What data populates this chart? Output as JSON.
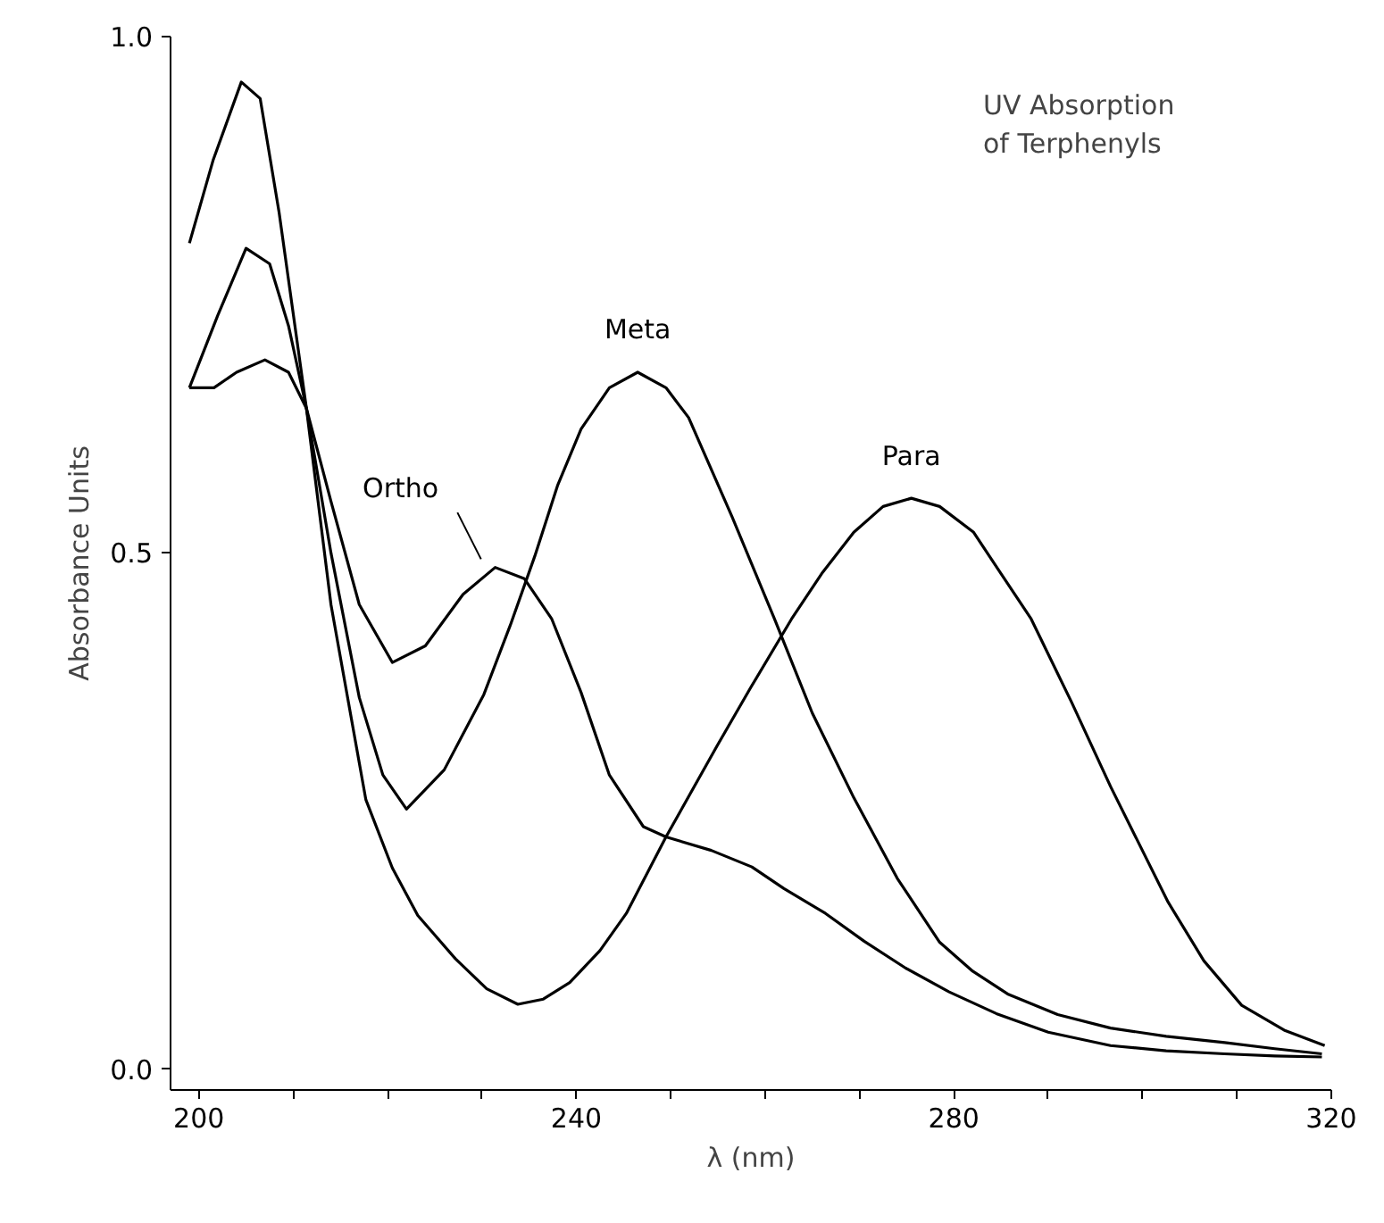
{
  "chart_data": {
    "type": "line",
    "xlabel": "λ (nm)",
    "ylabel": "Absorbance Units",
    "annotations": [
      "UV Absorption\nof Terphenyls"
    ],
    "xlim": [
      197,
      320
    ],
    "ylim": [
      -0.02,
      1.0
    ],
    "xticks": [
      200,
      {
        "value": 210,
        "label": null
      },
      {
        "value": 220,
        "label": null
      },
      {
        "value": 230,
        "label": null
      },
      240,
      {
        "value": 250,
        "label": null
      },
      {
        "value": 260,
        "label": null
      },
      {
        "value": 270,
        "label": null
      },
      280,
      {
        "value": 290,
        "label": null
      },
      {
        "value": 300,
        "label": null
      },
      {
        "value": 310,
        "label": null
      },
      320
    ],
    "yticks": [
      {
        "value": 0,
        "label": "0.0"
      },
      0.5,
      {
        "value": 1,
        "label": "1.0"
      }
    ],
    "grid": false,
    "legend": false,
    "marker": "none",
    "line_style": "solid",
    "series": [
      {
        "name": "Ortho",
        "color": "#000000",
        "x": [
          199,
          201.6,
          204,
          207,
          209.5,
          211.4,
          214,
          217,
          220.5,
          224,
          228,
          231.4,
          234.5,
          237.4,
          240.5,
          243.5,
          247.1,
          249.5,
          254.3,
          258.6,
          262,
          266.4,
          270.5,
          274.9,
          279.5,
          284.5,
          290,
          296.6,
          302.5,
          308.7,
          314,
          319
        ],
        "values": [
          0.66,
          0.66,
          0.675,
          0.687,
          0.675,
          0.64,
          0.55,
          0.45,
          0.394,
          0.41,
          0.46,
          0.486,
          0.475,
          0.436,
          0.365,
          0.285,
          0.235,
          0.225,
          0.212,
          0.196,
          0.175,
          0.151,
          0.124,
          0.098,
          0.075,
          0.054,
          0.036,
          0.023,
          0.018,
          0.015,
          0.013,
          0.012
        ]
      },
      {
        "name": "Meta",
        "color": "#000000",
        "x": [
          199,
          202,
          205,
          207.5,
          209.5,
          211.4,
          214,
          217,
          219.5,
          222,
          226,
          230.2,
          233,
          235.6,
          238,
          240.5,
          243.5,
          246.5,
          249.5,
          251.9,
          256.5,
          261,
          265,
          269.4,
          274,
          278.5,
          282,
          285.7,
          291,
          296.6,
          302.5,
          308.7,
          314,
          319
        ],
        "values": [
          0.66,
          0.73,
          0.795,
          0.78,
          0.72,
          0.64,
          0.5,
          0.36,
          0.285,
          0.252,
          0.29,
          0.363,
          0.43,
          0.497,
          0.565,
          0.62,
          0.66,
          0.675,
          0.66,
          0.631,
          0.535,
          0.436,
          0.345,
          0.263,
          0.185,
          0.123,
          0.095,
          0.073,
          0.053,
          0.04,
          0.032,
          0.026,
          0.02,
          0.015
        ]
      },
      {
        "name": "Para",
        "color": "#000000",
        "x": [
          199,
          201.5,
          204.5,
          206.5,
          208.5,
          211.4,
          214,
          217.7,
          220.5,
          223.2,
          227.2,
          230.5,
          233.8,
          236.5,
          239.3,
          242.5,
          245.3,
          249.5,
          254.9,
          258.5,
          262.8,
          266,
          269.4,
          272.5,
          275.5,
          278.5,
          282.1,
          285,
          288.2,
          292.5,
          296.6,
          302.7,
          306.5,
          310.5,
          315,
          319.3
        ],
        "values": [
          0.8,
          0.88,
          0.956,
          0.94,
          0.83,
          0.64,
          0.45,
          0.261,
          0.195,
          0.149,
          0.107,
          0.078,
          0.063,
          0.068,
          0.084,
          0.115,
          0.151,
          0.225,
          0.313,
          0.37,
          0.436,
          0.48,
          0.52,
          0.545,
          0.553,
          0.545,
          0.52,
          0.48,
          0.436,
          0.355,
          0.274,
          0.162,
          0.105,
          0.062,
          0.038,
          0.023
        ]
      }
    ]
  }
}
